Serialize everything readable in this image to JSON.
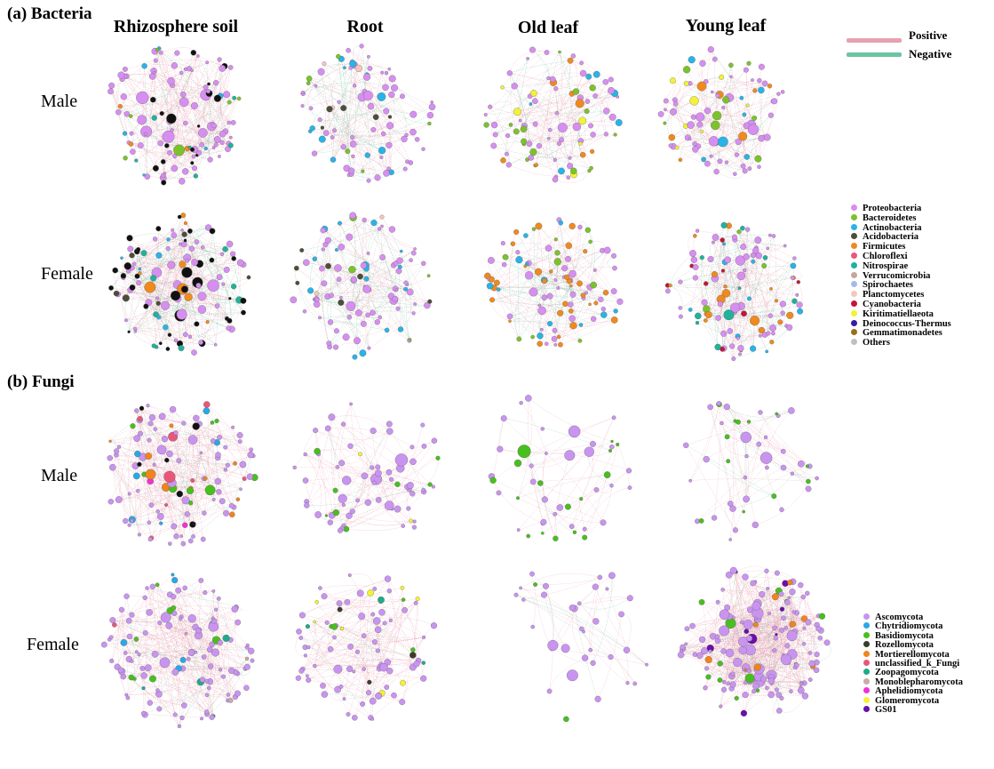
{
  "panels": {
    "bacteria": {
      "title": "(a) Bacteria"
    },
    "fungi": {
      "title": "(b) Fungi"
    }
  },
  "columns": [
    "Rhizosphere soil",
    "Root",
    "Old leaf",
    "Young leaf"
  ],
  "rows": {
    "male": "Male",
    "female": "Female"
  },
  "edge_legend": [
    {
      "label": "Positive",
      "color": "#e8a0b0"
    },
    {
      "label": "Negative",
      "color": "#6cc4a0"
    }
  ],
  "bacteria_legend": [
    {
      "label": "Proteobacteria",
      "color": "#d68ff0"
    },
    {
      "label": "Bacteroidetes",
      "color": "#7cc22a"
    },
    {
      "label": "Actinobacteria",
      "color": "#29b3e6"
    },
    {
      "label": "Acidobacteria",
      "color": "#4d4d3a"
    },
    {
      "label": "Firmicutes",
      "color": "#f08a1e"
    },
    {
      "label": "Chloroflexi",
      "color": "#e8577a"
    },
    {
      "label": "Nitrospirae",
      "color": "#20b29a"
    },
    {
      "label": "Verrucomicrobia",
      "color": "#c4a89a"
    },
    {
      "label": "Spirochaetes",
      "color": "#a9b8ec"
    },
    {
      "label": "Planctomycetes",
      "color": "#f5c6c0"
    },
    {
      "label": "Cyanobacteria",
      "color": "#c21838"
    },
    {
      "label": "Kiritimatiellaeota",
      "color": "#f2f236"
    },
    {
      "label": "Deinococcus-Thermus",
      "color": "#3a1aa6"
    },
    {
      "label": "Gemmatimonadetes",
      "color": "#9a6e1a"
    },
    {
      "label": "Others",
      "color": "#c0c0c0"
    }
  ],
  "fungi_legend": [
    {
      "label": "Ascomycota",
      "color": "#c994f0"
    },
    {
      "label": "Chytridiomycota",
      "color": "#29a8e6"
    },
    {
      "label": "Basidiomycota",
      "color": "#48bf1f"
    },
    {
      "label": "Rozellomycota",
      "color": "#3c3c2c"
    },
    {
      "label": "Mortierellomycota",
      "color": "#f0841e"
    },
    {
      "label": "unclassified_k_Fungi",
      "color": "#e8577a"
    },
    {
      "label": "Zoopagomycota",
      "color": "#1eab8a"
    },
    {
      "label": "Monoblepharomycota",
      "color": "#c8aca8"
    },
    {
      "label": "Aphelidiomycota",
      "color": "#f030d6"
    },
    {
      "label": "Glomeromycota",
      "color": "#f2f236"
    },
    {
      "label": "GS01",
      "color": "#6a0fa6"
    }
  ]
}
